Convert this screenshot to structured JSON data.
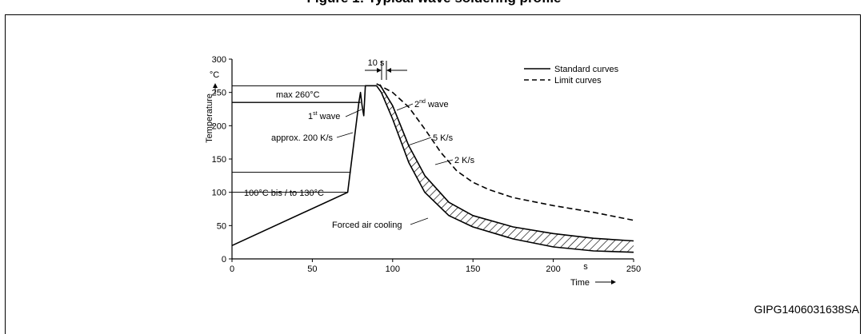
{
  "page": {
    "title": "Figure 1: Typical wave soldering profile",
    "figure_id": "GIPG1406031638SA"
  },
  "chart_data": {
    "type": "line",
    "title": "",
    "xlabel": "Time",
    "xunit": "s",
    "ylabel": "Temperature",
    "yunit": "°C",
    "xlim": [
      0,
      250
    ],
    "ylim": [
      0,
      300
    ],
    "x_ticks": [
      0,
      50,
      100,
      150,
      200,
      250
    ],
    "y_ticks": [
      0,
      50,
      100,
      150,
      200,
      250,
      300
    ],
    "grid": false,
    "legend_position": "top-right",
    "legend": [
      {
        "label": "Standard curves",
        "style": "solid"
      },
      {
        "label": "Limit curves",
        "style": "dashed"
      }
    ],
    "reference_lines": [
      130,
      100,
      260,
      235
    ],
    "series": [
      {
        "style": "solid",
        "points": [
          [
            0,
            20
          ],
          [
            72,
            100
          ],
          [
            79,
            235
          ],
          [
            80,
            250
          ],
          [
            81,
            230
          ],
          [
            82,
            215
          ],
          [
            83,
            260
          ],
          [
            90,
            260
          ],
          [
            93,
            250
          ],
          [
            100,
            210
          ],
          [
            110,
            145
          ],
          [
            120,
            100
          ],
          [
            135,
            65
          ],
          [
            150,
            48
          ],
          [
            175,
            30
          ],
          [
            200,
            18
          ],
          [
            225,
            12
          ],
          [
            250,
            10
          ]
        ]
      },
      {
        "style": "solid",
        "points": [
          [
            92,
            262
          ],
          [
            100,
            230
          ],
          [
            110,
            170
          ],
          [
            120,
            125
          ],
          [
            135,
            85
          ],
          [
            150,
            65
          ],
          [
            175,
            48
          ],
          [
            200,
            38
          ],
          [
            225,
            31
          ],
          [
            250,
            27
          ]
        ]
      },
      {
        "style": "dashed",
        "points": [
          [
            90,
            263
          ],
          [
            100,
            250
          ],
          [
            110,
            228
          ],
          [
            120,
            195
          ],
          [
            130,
            160
          ],
          [
            140,
            132
          ],
          [
            150,
            115
          ],
          [
            160,
            104
          ],
          [
            175,
            92
          ],
          [
            200,
            80
          ],
          [
            225,
            70
          ],
          [
            250,
            58
          ]
        ]
      }
    ],
    "annotations": [
      {
        "text": "10 s"
      },
      {
        "text": "max 260°C"
      },
      {
        "text": "1",
        "sup": "st",
        "rest": " wave"
      },
      {
        "text": "2",
        "sup": "nd",
        "rest": " wave"
      },
      {
        "text": "approx. 200 K/s"
      },
      {
        "text": "5 K/s"
      },
      {
        "text": "2 K/s"
      },
      {
        "text": "100°C bis / to 130°C"
      },
      {
        "text": "Forced air cooling"
      }
    ]
  }
}
